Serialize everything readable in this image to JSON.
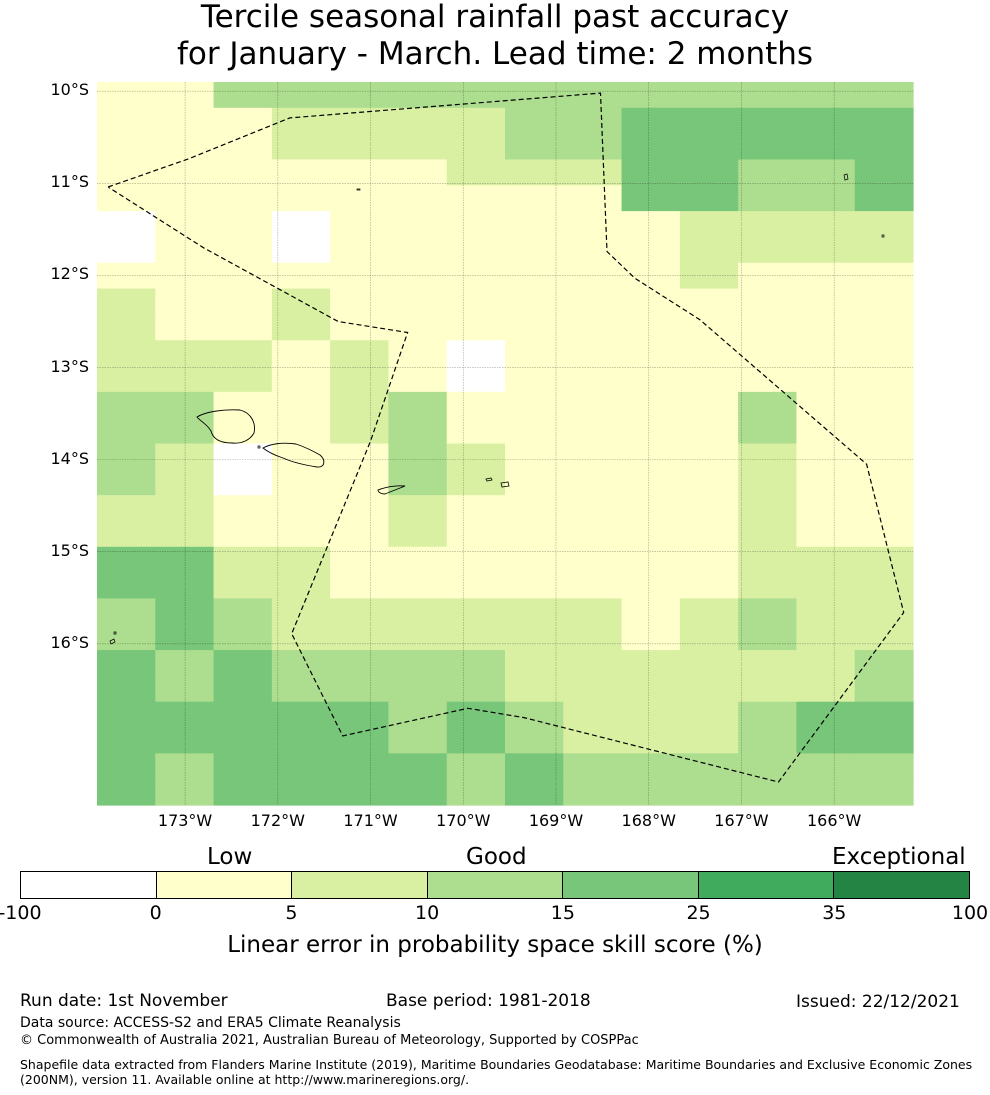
{
  "title": {
    "line1": "Tercile seasonal rainfall past accuracy",
    "line2": "for January - March. Lead time: 2 months"
  },
  "map": {
    "lat_labels": [
      "10°S",
      "11°S",
      "12°S",
      "13°S",
      "14°S",
      "15°S",
      "16°S"
    ],
    "lon_labels": [
      "173°W",
      "172°W",
      "171°W",
      "170°W",
      "169°W",
      "168°W",
      "167°W",
      "166°W"
    ],
    "lon_range": [
      -173.95,
      -165.15
    ],
    "lat_range": [
      -17.75,
      -9.9
    ],
    "cell_grid_origin": {
      "west_lon": -173.95,
      "north_lat": -9.9
    },
    "cell_size_deg": {
      "lon": 0.833,
      "lat": 0.556
    },
    "cells": [
      [
        1,
        1,
        3,
        3,
        3,
        3,
        3,
        3,
        3,
        3,
        3,
        3,
        3,
        3
      ],
      [
        1,
        1,
        1,
        2,
        2,
        2,
        2,
        3,
        3,
        4,
        4,
        4,
        4,
        4
      ],
      [
        1,
        1,
        1,
        2,
        2,
        2,
        2,
        3,
        3,
        4,
        4,
        4,
        4,
        4
      ],
      [
        1,
        1,
        1,
        1,
        1,
        1,
        2,
        2,
        2,
        4,
        4,
        3,
        3,
        4
      ],
      [
        1,
        1,
        1,
        1,
        1,
        1,
        1,
        1,
        1,
        4,
        4,
        3,
        3,
        4
      ],
      [
        0,
        1,
        1,
        0,
        1,
        1,
        1,
        1,
        1,
        1,
        2,
        2,
        2,
        2
      ],
      [
        0,
        1,
        1,
        0,
        1,
        1,
        1,
        1,
        1,
        1,
        2,
        2,
        2,
        2
      ],
      [
        1,
        1,
        1,
        1,
        1,
        1,
        1,
        1,
        1,
        1,
        2,
        1,
        1,
        1
      ],
      [
        2,
        1,
        1,
        2,
        1,
        1,
        1,
        1,
        1,
        1,
        1,
        1,
        1,
        1
      ],
      [
        2,
        1,
        1,
        2,
        1,
        1,
        1,
        1,
        1,
        1,
        1,
        1,
        1,
        1
      ],
      [
        2,
        2,
        2,
        1,
        2,
        1,
        0,
        1,
        1,
        1,
        1,
        1,
        1,
        1
      ],
      [
        2,
        2,
        2,
        1,
        2,
        1,
        0,
        1,
        1,
        1,
        1,
        1,
        1,
        1
      ],
      [
        3,
        3,
        1,
        1,
        2,
        3,
        1,
        1,
        1,
        1,
        1,
        3,
        1,
        1
      ],
      [
        3,
        3,
        1,
        1,
        2,
        3,
        1,
        1,
        1,
        1,
        1,
        3,
        1,
        1
      ],
      [
        3,
        2,
        0,
        1,
        1,
        3,
        2,
        1,
        1,
        1,
        1,
        2,
        1,
        1
      ],
      [
        3,
        2,
        0,
        1,
        1,
        3,
        2,
        1,
        1,
        1,
        1,
        2,
        1,
        1
      ],
      [
        2,
        2,
        1,
        1,
        1,
        2,
        1,
        1,
        1,
        1,
        1,
        2,
        1,
        1
      ],
      [
        2,
        2,
        1,
        1,
        1,
        2,
        1,
        1,
        1,
        1,
        1,
        2,
        1,
        1
      ],
      [
        4,
        4,
        2,
        2,
        1,
        1,
        1,
        1,
        1,
        1,
        1,
        2,
        2,
        2
      ],
      [
        4,
        4,
        2,
        2,
        1,
        1,
        1,
        1,
        1,
        1,
        1,
        2,
        2,
        2
      ],
      [
        3,
        4,
        3,
        2,
        2,
        2,
        2,
        2,
        2,
        1,
        2,
        3,
        2,
        2
      ],
      [
        3,
        4,
        3,
        2,
        2,
        2,
        2,
        2,
        2,
        1,
        2,
        3,
        2,
        2
      ],
      [
        4,
        3,
        4,
        3,
        3,
        3,
        3,
        2,
        2,
        2,
        2,
        2,
        2,
        3
      ],
      [
        4,
        3,
        4,
        3,
        3,
        3,
        3,
        2,
        2,
        2,
        2,
        2,
        2,
        3
      ],
      [
        4,
        4,
        4,
        4,
        4,
        3,
        4,
        3,
        2,
        2,
        2,
        3,
        4,
        4
      ],
      [
        4,
        4,
        4,
        4,
        4,
        3,
        4,
        3,
        2,
        2,
        2,
        3,
        4,
        4
      ],
      [
        4,
        3,
        4,
        4,
        4,
        4,
        3,
        4,
        3,
        3,
        3,
        3,
        3,
        3
      ],
      [
        4,
        3,
        4,
        4,
        4,
        4,
        3,
        4,
        3,
        3,
        3,
        3,
        3,
        3
      ]
    ],
    "boundary_lonlat": [
      [
        -173.83,
        -11.04
      ],
      [
        -172.95,
        -10.73
      ],
      [
        -171.87,
        -10.29
      ],
      [
        -168.52,
        -10.02
      ],
      [
        -168.45,
        -11.74
      ],
      [
        -168.15,
        -12.03
      ],
      [
        -167.45,
        -12.48
      ],
      [
        -165.65,
        -14.05
      ],
      [
        -165.25,
        -15.66
      ],
      [
        -166.6,
        -17.5
      ],
      [
        -169.35,
        -16.8
      ],
      [
        -169.95,
        -16.7
      ],
      [
        -171.3,
        -17.0
      ],
      [
        -171.85,
        -15.89
      ],
      [
        -171.0,
        -13.8
      ],
      [
        -170.6,
        -12.62
      ],
      [
        -171.35,
        -12.5
      ],
      [
        -172.8,
        -11.7
      ],
      [
        -173.83,
        -11.04
      ]
    ]
  },
  "legend": {
    "categories": [
      "Low",
      "Good",
      "Exceptional"
    ],
    "ticks": [
      "-100",
      "0",
      "5",
      "10",
      "15",
      "25",
      "35",
      "100"
    ],
    "colors": [
      "#ffffff",
      "#ffffcc",
      "#d9f0a3",
      "#addd8e",
      "#78c679",
      "#41ab5d",
      "#238443"
    ],
    "label": "Linear error in probability space skill score (%)"
  },
  "footer": {
    "run_date": "Run date: 1st November",
    "base_period": "Base period: 1981-2018",
    "issued": "Issued: 22/12/2021",
    "data_source": "Data source: ACCESS-S2 and ERA5 Climate Reanalysis",
    "copyright": "© Commonwealth of Australia 2021, Australian Bureau of Meteorology, Supported by COSPPac",
    "shapefile_note": "Shapefile data extracted from Flanders Marine Institute (2019), Maritime Boundaries Geodatabase: Maritime Boundaries and Exclusive Economic Zones (200NM), version 11. Available online at http://www.marineregions.org/."
  }
}
